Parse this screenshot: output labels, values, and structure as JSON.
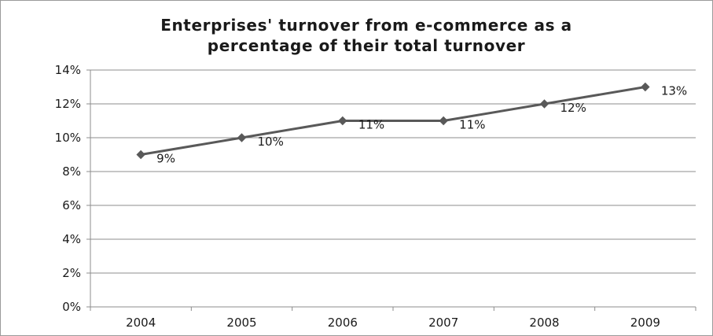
{
  "chart_data": {
    "type": "line",
    "title_lines": [
      "Enterprises' turnover from e-commerce as a",
      "percentage of their total turnover"
    ],
    "categories": [
      "2004",
      "2005",
      "2006",
      "2007",
      "2008",
      "2009"
    ],
    "series": [
      {
        "values": [
          9,
          10,
          11,
          11,
          12,
          13
        ],
        "data_labels": [
          "9%",
          "10%",
          "11%",
          "11%",
          "12%",
          "13%"
        ],
        "color": "#595959",
        "marker": "diamond"
      }
    ],
    "y_ticks": [
      "0%",
      "2%",
      "4%",
      "6%",
      "8%",
      "10%",
      "12%",
      "14%"
    ],
    "ylim": [
      0,
      14
    ],
    "ytick_step": 2,
    "grid": "horizontal",
    "legend": "none",
    "xlabel": "",
    "ylabel": ""
  }
}
